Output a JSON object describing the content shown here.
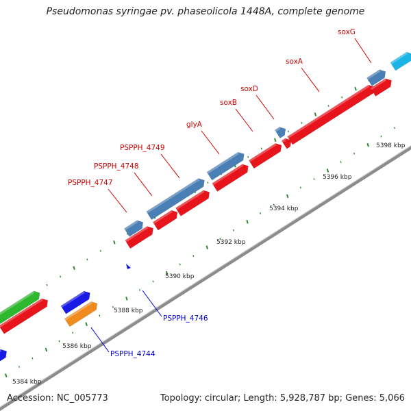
{
  "title": "Pseudomonas syringae pv. phaseolicola 1448A, complete genome",
  "footer": {
    "accession": "Accession: NC_005773",
    "summary": "Topology: circular; Length: 5,928,787 bp; Genes: 5,066"
  },
  "colors": {
    "backbone": "#8c8c8c",
    "forward_cds": "#4a7fb5",
    "reverse_cds": "#e8141c",
    "rrna_like": "#2db82d",
    "trna_like": "#f08c1e",
    "misc_blue": "#1a1ae6",
    "cyan": "#1ab4e6",
    "forward_label": "#cc0000",
    "reverse_label": "#0000cc",
    "dots": "#2a8a2a"
  },
  "tick_labels": [
    "5384 kbp",
    "5386 kbp",
    "5388 kbp",
    "5390 kbp",
    "5392 kbp",
    "5394 kbp",
    "5396 kbp",
    "5398 kbp"
  ],
  "gene_labels": [
    {
      "name": "soxG",
      "strand": "forward"
    },
    {
      "name": "soxA",
      "strand": "forward"
    },
    {
      "name": "soxD",
      "strand": "forward"
    },
    {
      "name": "soxB",
      "strand": "forward"
    },
    {
      "name": "glyA",
      "strand": "forward"
    },
    {
      "name": "PSPPH_4749",
      "strand": "forward"
    },
    {
      "name": "PSPPH_4748",
      "strand": "forward"
    },
    {
      "name": "PSPPH_4747",
      "strand": "forward"
    },
    {
      "name": "PSPPH_4746",
      "strand": "reverse"
    },
    {
      "name": "PSPPH_4744",
      "strand": "reverse"
    }
  ]
}
